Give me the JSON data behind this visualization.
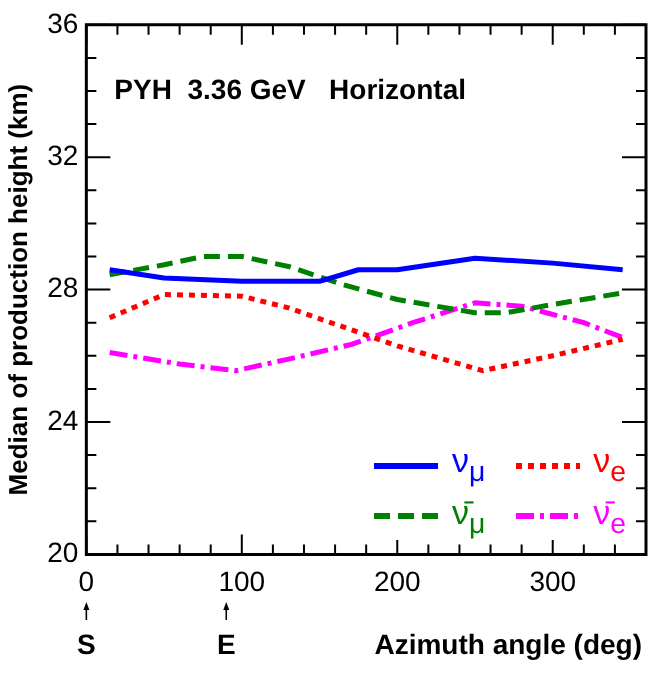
{
  "chart_data": {
    "type": "line",
    "title": "PYH  3.36 GeV   Horizontal",
    "xlabel": "Azimuth angle (deg)",
    "ylabel": "Median of production height (km)",
    "annotations": [
      "S",
      "E"
    ],
    "xlim": [
      0,
      360
    ],
    "xticks": [
      0,
      100,
      200,
      300
    ],
    "ylim": [
      20,
      36
    ],
    "yticks": [
      20,
      24,
      28,
      32,
      36
    ],
    "grid": false,
    "legend": "bottom right",
    "marker": "none",
    "series": [
      {
        "name": "ν$_{μ}$",
        "color": "#0000ff",
        "line_style": "solid",
        "x": [
          15,
          50,
          100,
          150,
          175,
          200,
          250,
          300,
          345
        ],
        "values": [
          28.6,
          28.35,
          28.25,
          28.25,
          28.6,
          28.6,
          28.95,
          28.8,
          28.6
        ]
      },
      {
        "name": "ν̄$_{μ}$",
        "color": "#008000",
        "line_style": "dashed",
        "x": [
          15,
          50,
          75,
          100,
          130,
          165,
          200,
          250,
          270,
          300,
          345
        ],
        "values": [
          28.45,
          28.75,
          29.0,
          29.0,
          28.7,
          28.15,
          27.7,
          27.3,
          27.3,
          27.55,
          27.9
        ]
      },
      {
        "name": "ν$_{e}$",
        "color": "#ff0000",
        "line_style": "dotted",
        "x": [
          15,
          50,
          100,
          130,
          200,
          255,
          300,
          345
        ],
        "values": [
          27.15,
          27.85,
          27.8,
          27.45,
          26.3,
          25.55,
          26.0,
          26.5
        ]
      },
      {
        "name": "ν̄$_{e}$",
        "color": "#ff00ff",
        "line_style": "dashdot",
        "x": [
          15,
          60,
          96,
          130,
          171,
          210,
          250,
          280,
          320,
          345
        ],
        "values": [
          26.1,
          25.75,
          25.55,
          25.9,
          26.35,
          27.0,
          27.6,
          27.5,
          27.0,
          26.55
        ]
      }
    ]
  }
}
